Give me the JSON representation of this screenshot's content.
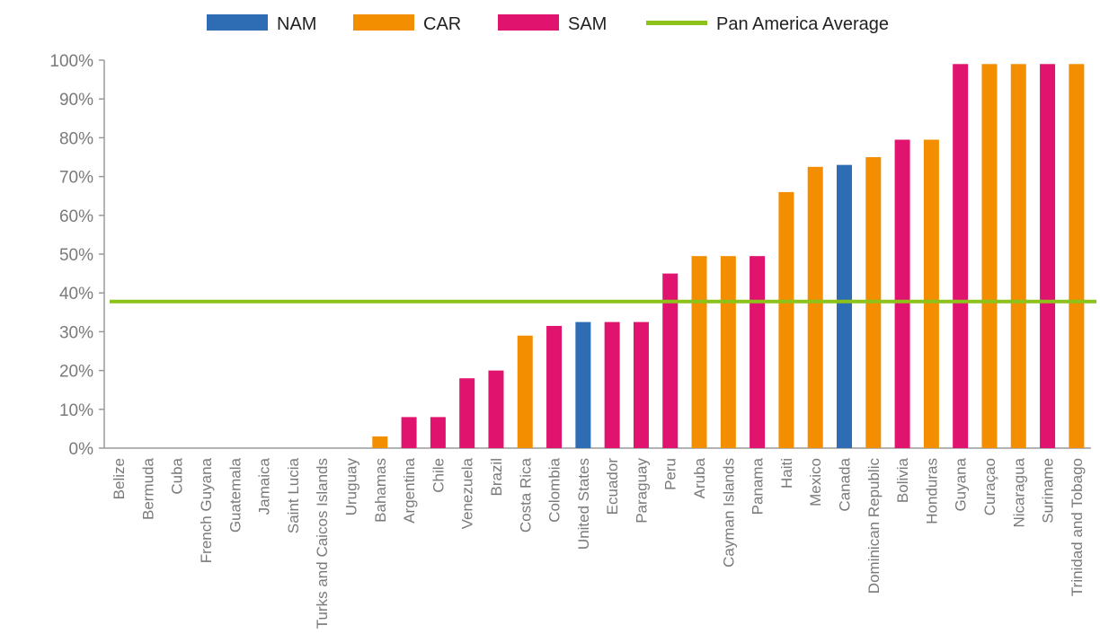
{
  "chart_data": {
    "type": "bar",
    "title": "",
    "xlabel": "",
    "ylabel": "",
    "ylim": [
      0,
      100
    ],
    "y_ticks": [
      "0%",
      "10%",
      "20%",
      "30%",
      "40%",
      "50%",
      "60%",
      "70%",
      "80%",
      "90%",
      "100%"
    ],
    "grid": false,
    "legend_position": "top-center",
    "legend": [
      {
        "key": "NAM",
        "label": "NAM",
        "color": "#2e6db4",
        "shape": "bar"
      },
      {
        "key": "CAR",
        "label": "CAR",
        "color": "#f28e00",
        "shape": "bar"
      },
      {
        "key": "SAM",
        "label": "SAM",
        "color": "#e0136e",
        "shape": "bar"
      },
      {
        "key": "AVG",
        "label": "Pan America Average",
        "color": "#8cc21a",
        "shape": "line"
      }
    ],
    "reference_line": {
      "label": "Pan America Average",
      "value": 37.8,
      "color": "#8cc21a"
    },
    "categories": [
      "Belize",
      "Bermuda",
      "Cuba",
      "French Guyana",
      "Guatemala",
      "Jamaica",
      "Saint Lucia",
      "Turks and Caicos Islands",
      "Uruguay",
      "Bahamas",
      "Argentina",
      "Chile",
      "Venezuela",
      "Brazil",
      "Costa Rica",
      "Colombia",
      "United States",
      "Ecuador",
      "Paraguay",
      "Peru",
      "Aruba",
      "Cayman Islands",
      "Panama",
      "Haiti",
      "Mexico",
      "Canada",
      "Dominican Republic",
      "Bolivia",
      "Honduras",
      "Guyana",
      "Curaçao",
      "Nicaragua",
      "Suriname",
      "Trinidad and Tobago"
    ],
    "values": [
      0,
      0,
      0,
      0,
      0,
      0,
      0,
      0,
      0,
      3,
      8,
      8,
      18,
      20,
      29,
      31.5,
      32.5,
      32.5,
      32.5,
      45,
      49.5,
      49.5,
      49.5,
      66,
      72.5,
      73,
      75,
      79.5,
      79.5,
      99,
      99,
      99,
      99,
      99
    ],
    "regions": [
      "CAR",
      "CAR",
      "CAR",
      "SAM",
      "CAR",
      "CAR",
      "CAR",
      "CAR",
      "SAM",
      "CAR",
      "SAM",
      "SAM",
      "SAM",
      "SAM",
      "CAR",
      "SAM",
      "NAM",
      "SAM",
      "SAM",
      "SAM",
      "CAR",
      "CAR",
      "SAM",
      "CAR",
      "CAR",
      "NAM",
      "CAR",
      "SAM",
      "CAR",
      "SAM",
      "CAR",
      "CAR",
      "SAM",
      "CAR"
    ]
  }
}
